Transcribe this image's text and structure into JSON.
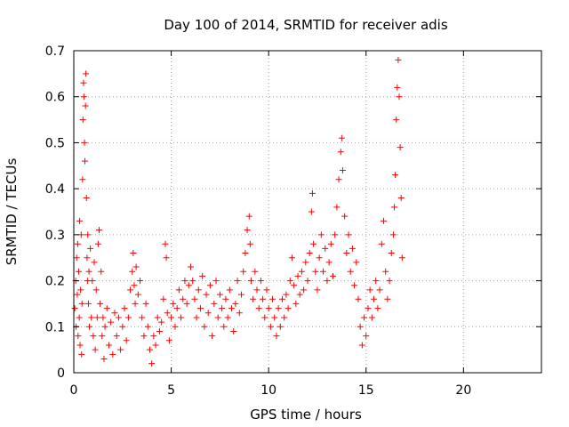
{
  "chart_data": {
    "type": "scatter",
    "title": "Day 100 of 2014, SRMTID for receiver adis",
    "xlabel": "GPS time / hours",
    "ylabel": "SRMTID / TECUs",
    "xlim": [
      0,
      24
    ],
    "ylim": [
      0,
      0.7
    ],
    "x_ticks": [
      "0",
      "5",
      "10",
      "15",
      "20"
    ],
    "y_ticks": [
      "0",
      "0.1",
      "0.2",
      "0.3",
      "0.4",
      "0.5",
      "0.6",
      "0.7"
    ],
    "grid": true,
    "marker": "plus",
    "series": [
      {
        "name": "SRMTID",
        "color": "#ff0000",
        "points": [
          [
            0.05,
            0.14
          ],
          [
            0.1,
            0.2
          ],
          [
            0.12,
            0.1
          ],
          [
            0.15,
            0.25
          ],
          [
            0.18,
            0.17
          ],
          [
            0.2,
            0.28
          ],
          [
            0.22,
            0.08
          ],
          [
            0.25,
            0.22
          ],
          [
            0.28,
            0.12
          ],
          [
            0.3,
            0.33
          ],
          [
            0.32,
            0.06
          ],
          [
            0.35,
            0.18
          ],
          [
            0.38,
            0.3
          ],
          [
            0.4,
            0.04
          ],
          [
            0.42,
            0.15
          ],
          [
            0.45,
            0.42
          ],
          [
            0.47,
            0.55
          ],
          [
            0.5,
            0.63
          ],
          [
            0.52,
            0.6
          ],
          [
            0.55,
            0.5
          ],
          [
            0.57,
            0.46
          ],
          [
            0.6,
            0.58
          ],
          [
            0.62,
            0.65
          ],
          [
            0.65,
            0.38
          ],
          [
            0.68,
            0.25
          ],
          [
            0.7,
            0.2
          ],
          [
            0.72,
            0.3
          ],
          [
            0.75,
            0.15
          ],
          [
            0.78,
            0.22
          ],
          [
            0.8,
            0.1
          ],
          [
            0.85,
            0.27
          ],
          [
            0.9,
            0.12
          ],
          [
            0.95,
            0.2
          ],
          [
            1.0,
            0.08
          ],
          [
            1.05,
            0.24
          ],
          [
            1.1,
            0.05
          ],
          [
            1.15,
            0.18
          ],
          [
            1.2,
            0.12
          ],
          [
            1.25,
            0.28
          ],
          [
            1.3,
            0.31
          ],
          [
            1.35,
            0.15
          ],
          [
            1.4,
            0.22
          ],
          [
            1.45,
            0.08
          ],
          [
            1.5,
            0.12
          ],
          [
            1.55,
            0.03
          ],
          [
            1.6,
            0.1
          ],
          [
            1.7,
            0.14
          ],
          [
            1.8,
            0.06
          ],
          [
            1.9,
            0.11
          ],
          [
            2.0,
            0.04
          ],
          [
            2.1,
            0.13
          ],
          [
            2.2,
            0.08
          ],
          [
            2.3,
            0.12
          ],
          [
            2.4,
            0.05
          ],
          [
            2.5,
            0.1
          ],
          [
            2.6,
            0.14
          ],
          [
            2.7,
            0.07
          ],
          [
            2.8,
            0.12
          ],
          [
            2.9,
            0.18
          ],
          [
            3.0,
            0.22
          ],
          [
            3.05,
            0.26
          ],
          [
            3.1,
            0.19
          ],
          [
            3.15,
            0.15
          ],
          [
            3.2,
            0.23
          ],
          [
            3.3,
            0.17
          ],
          [
            3.4,
            0.2
          ],
          [
            3.5,
            0.12
          ],
          [
            3.6,
            0.08
          ],
          [
            3.7,
            0.15
          ],
          [
            3.8,
            0.1
          ],
          [
            3.9,
            0.05
          ],
          [
            4.0,
            0.02
          ],
          [
            4.1,
            0.08
          ],
          [
            4.2,
            0.06
          ],
          [
            4.3,
            0.12
          ],
          [
            4.4,
            0.09
          ],
          [
            4.5,
            0.11
          ],
          [
            4.6,
            0.16
          ],
          [
            4.7,
            0.28
          ],
          [
            4.75,
            0.25
          ],
          [
            4.8,
            0.13
          ],
          [
            4.9,
            0.07
          ],
          [
            5.0,
            0.12
          ],
          [
            5.1,
            0.15
          ],
          [
            5.2,
            0.1
          ],
          [
            5.3,
            0.14
          ],
          [
            5.4,
            0.18
          ],
          [
            5.5,
            0.12
          ],
          [
            5.6,
            0.16
          ],
          [
            5.7,
            0.2
          ],
          [
            5.8,
            0.15
          ],
          [
            5.9,
            0.19
          ],
          [
            6.0,
            0.23
          ],
          [
            6.1,
            0.2
          ],
          [
            6.2,
            0.16
          ],
          [
            6.3,
            0.12
          ],
          [
            6.4,
            0.18
          ],
          [
            6.5,
            0.14
          ],
          [
            6.6,
            0.21
          ],
          [
            6.7,
            0.1
          ],
          [
            6.8,
            0.17
          ],
          [
            6.9,
            0.13
          ],
          [
            7.0,
            0.19
          ],
          [
            7.1,
            0.08
          ],
          [
            7.2,
            0.15
          ],
          [
            7.3,
            0.2
          ],
          [
            7.4,
            0.12
          ],
          [
            7.5,
            0.17
          ],
          [
            7.6,
            0.14
          ],
          [
            7.7,
            0.1
          ],
          [
            7.8,
            0.16
          ],
          [
            7.9,
            0.12
          ],
          [
            8.0,
            0.18
          ],
          [
            8.1,
            0.14
          ],
          [
            8.2,
            0.09
          ],
          [
            8.3,
            0.15
          ],
          [
            8.4,
            0.2
          ],
          [
            8.5,
            0.13
          ],
          [
            8.6,
            0.17
          ],
          [
            8.7,
            0.22
          ],
          [
            8.8,
            0.26
          ],
          [
            8.9,
            0.31
          ],
          [
            9.0,
            0.34
          ],
          [
            9.05,
            0.28
          ],
          [
            9.1,
            0.2
          ],
          [
            9.2,
            0.16
          ],
          [
            9.3,
            0.22
          ],
          [
            9.4,
            0.18
          ],
          [
            9.5,
            0.14
          ],
          [
            9.6,
            0.2
          ],
          [
            9.7,
            0.16
          ],
          [
            9.8,
            0.12
          ],
          [
            9.9,
            0.18
          ],
          [
            10.0,
            0.14
          ],
          [
            10.1,
            0.1
          ],
          [
            10.2,
            0.16
          ],
          [
            10.3,
            0.12
          ],
          [
            10.4,
            0.08
          ],
          [
            10.5,
            0.14
          ],
          [
            10.6,
            0.1
          ],
          [
            10.7,
            0.16
          ],
          [
            10.8,
            0.12
          ],
          [
            10.9,
            0.17
          ],
          [
            11.0,
            0.14
          ],
          [
            11.1,
            0.2
          ],
          [
            11.2,
            0.25
          ],
          [
            11.3,
            0.19
          ],
          [
            11.4,
            0.15
          ],
          [
            11.5,
            0.21
          ],
          [
            11.6,
            0.17
          ],
          [
            11.7,
            0.22
          ],
          [
            11.8,
            0.18
          ],
          [
            11.9,
            0.24
          ],
          [
            12.0,
            0.2
          ],
          [
            12.1,
            0.26
          ],
          [
            12.2,
            0.35
          ],
          [
            12.25,
            0.39
          ],
          [
            12.3,
            0.28
          ],
          [
            12.4,
            0.22
          ],
          [
            12.5,
            0.18
          ],
          [
            12.6,
            0.25
          ],
          [
            12.7,
            0.3
          ],
          [
            12.8,
            0.22
          ],
          [
            12.9,
            0.27
          ],
          [
            13.0,
            0.2
          ],
          [
            13.1,
            0.24
          ],
          [
            13.2,
            0.28
          ],
          [
            13.3,
            0.21
          ],
          [
            13.4,
            0.3
          ],
          [
            13.5,
            0.36
          ],
          [
            13.6,
            0.42
          ],
          [
            13.7,
            0.48
          ],
          [
            13.75,
            0.51
          ],
          [
            13.8,
            0.44
          ],
          [
            13.9,
            0.34
          ],
          [
            14.0,
            0.26
          ],
          [
            14.1,
            0.3
          ],
          [
            14.2,
            0.22
          ],
          [
            14.3,
            0.27
          ],
          [
            14.4,
            0.19
          ],
          [
            14.5,
            0.24
          ],
          [
            14.6,
            0.16
          ],
          [
            14.7,
            0.1
          ],
          [
            14.8,
            0.06
          ],
          [
            14.9,
            0.12
          ],
          [
            15.0,
            0.08
          ],
          [
            15.1,
            0.14
          ],
          [
            15.2,
            0.18
          ],
          [
            15.3,
            0.12
          ],
          [
            15.4,
            0.16
          ],
          [
            15.5,
            0.2
          ],
          [
            15.6,
            0.14
          ],
          [
            15.7,
            0.18
          ],
          [
            15.8,
            0.28
          ],
          [
            15.9,
            0.33
          ],
          [
            16.0,
            0.22
          ],
          [
            16.1,
            0.16
          ],
          [
            16.2,
            0.2
          ],
          [
            16.3,
            0.26
          ],
          [
            16.4,
            0.3
          ],
          [
            16.45,
            0.36
          ],
          [
            16.5,
            0.43
          ],
          [
            16.55,
            0.55
          ],
          [
            16.6,
            0.62
          ],
          [
            16.65,
            0.68
          ],
          [
            16.7,
            0.6
          ],
          [
            16.75,
            0.49
          ],
          [
            16.8,
            0.38
          ],
          [
            16.85,
            0.25
          ]
        ]
      }
    ]
  }
}
